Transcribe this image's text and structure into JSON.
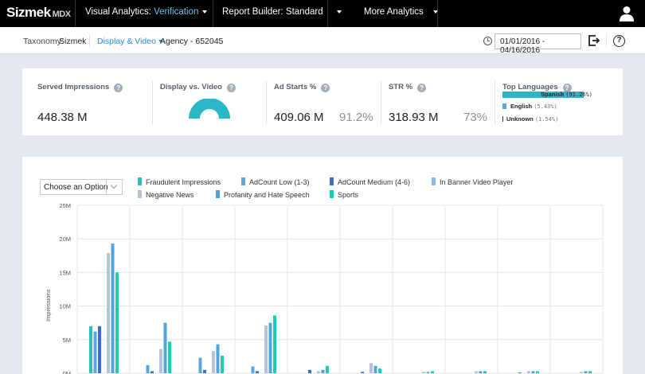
{
  "topnav": {
    "logo": "Sizmek",
    "logo_suffix": "MDX",
    "visual_analytics_label": "Visual Analytics:",
    "visual_analytics_value": "Verification",
    "report_builder_label": "Report Builder:",
    "report_builder_value": "Standard",
    "more_analytics": "More Analytics"
  },
  "subheader": {
    "taxonomy_label": "Taxonomy:",
    "taxonomy_value": "Sizmek",
    "view_selector": "Display & Video",
    "agency": "Agency - 652045",
    "date_range": "01/01/2016 - 04/16/2016"
  },
  "kpis": {
    "served_impressions": {
      "title": "Served Impressions",
      "value": "448.38 M"
    },
    "display_vs_video": {
      "title": "Display vs. Video"
    },
    "ad_starts": {
      "title": "Ad Starts %",
      "value": "409.06 M",
      "percent": "91.2%"
    },
    "str": {
      "title": "STR %",
      "value": "318.93 M",
      "percent": "73%"
    },
    "top_languages": {
      "title": "Top Languages",
      "items": [
        {
          "name": "Spanish",
          "pct": "(91.26%)",
          "share": 0.9126
        },
        {
          "name": "English",
          "pct": "(5.43%)",
          "share": 0.0543
        },
        {
          "name": "Unknown",
          "pct": "(1.54%)",
          "share": 0.0154
        }
      ]
    }
  },
  "chart_controls": {
    "select_placeholder": "Choose an Option"
  },
  "colors": {
    "fraudulent": "#2fc0b6",
    "adcount_low": "#5aa6e3",
    "adcount_medium": "#3a6fcd",
    "in_banner": "#8fb8ea",
    "negative_news": "#b3c4d9",
    "profanity": "#4ea5e0",
    "sports": "#18cfb5"
  },
  "chart_data": {
    "type": "bar",
    "ylabel": "Impressions",
    "ylim": [
      0,
      25
    ],
    "y_ticks": [
      "0M",
      "5M",
      "10M",
      "15M",
      "20M",
      "25M"
    ],
    "grid": true,
    "series": [
      {
        "name": "Fraudulent Impressions",
        "color": "#2fc0b6",
        "values": [
          7.0,
          0.0,
          0.0,
          0.0,
          0.0,
          0.0,
          0.0,
          0.0,
          0.0,
          0.0
        ]
      },
      {
        "name": "AdCount Low (1-3)",
        "color": "#5aa6e3",
        "values": [
          6.2,
          1.2,
          2.3,
          1.0,
          0.0,
          0.0,
          0.0,
          0.0,
          0.0,
          0.0
        ]
      },
      {
        "name": "AdCount Medium (4-6)",
        "color": "#3a6fcd",
        "values": [
          7.0,
          0.3,
          0.5,
          0.3,
          0.5,
          0.2,
          0.0,
          0.0,
          0.1,
          0.0
        ]
      },
      {
        "name": "In Banner Video Player",
        "color": "#8fb8ea",
        "values": [
          0.0,
          0.0,
          0.0,
          0.0,
          0.0,
          0.0,
          0.0,
          0.0,
          0.0,
          0.0
        ]
      },
      {
        "name": "Negative News",
        "color": "#b3c4d9",
        "values": [
          17.9,
          3.6,
          3.3,
          7.1,
          0.3,
          1.5,
          0.2,
          0.3,
          0.3,
          0.2
        ]
      },
      {
        "name": "Profanity and Hate Speech",
        "color": "#4ea5e0",
        "values": [
          19.3,
          7.5,
          4.3,
          7.5,
          0.5,
          1.1,
          0.2,
          0.3,
          0.3,
          0.3
        ]
      },
      {
        "name": "Sports",
        "color": "#18cfb5",
        "values": [
          15.0,
          4.7,
          2.6,
          8.6,
          1.1,
          0.7,
          0.3,
          0.3,
          0.3,
          0.3
        ]
      }
    ]
  }
}
